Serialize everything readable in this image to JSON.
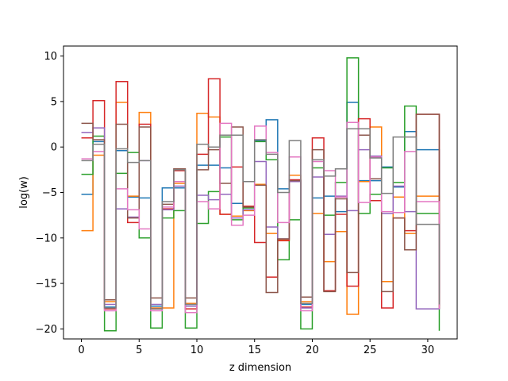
{
  "chart_data": {
    "type": "line",
    "style": "step-range",
    "xlabel": "z dimension",
    "ylabel": "log(w)",
    "xlim": [
      -1.55,
      32.55
    ],
    "ylim": [
      -21.1,
      11.1
    ],
    "xticks": [
      0,
      5,
      10,
      15,
      20,
      25,
      30
    ],
    "yticks": [
      10,
      5,
      0,
      -5,
      -10,
      -15,
      -20
    ],
    "grid": false,
    "legend": "none",
    "colors": [
      "#1f77b4",
      "#ff7f0e",
      "#2ca02c",
      "#d62728",
      "#9467bd",
      "#8c564b",
      "#e377c2",
      "#7f7f7f"
    ],
    "series": [
      {
        "values": [
          [
            0,
            -5.2
          ],
          [
            1,
            0.6
          ],
          [
            2,
            -17.6
          ],
          [
            3,
            -0.4
          ],
          [
            4,
            -5.5
          ],
          [
            5,
            -5.6
          ],
          [
            6,
            -17.5
          ],
          [
            7,
            -4.5
          ],
          [
            8,
            -4.5
          ],
          [
            9,
            -17.3
          ],
          [
            10,
            -2.0
          ],
          [
            11,
            -2.0
          ],
          [
            12,
            -2.3
          ],
          [
            13,
            -6.2
          ],
          [
            14,
            -6.6
          ],
          [
            15,
            0.7
          ],
          [
            16,
            3.0
          ],
          [
            17,
            -4.6
          ],
          [
            18,
            -3.7
          ],
          [
            19,
            -17.3
          ],
          [
            20,
            -5.6
          ],
          [
            21,
            -5.4
          ],
          [
            22,
            -7.1
          ],
          [
            23,
            4.9
          ],
          [
            24,
            -3.7
          ],
          [
            25,
            -3.7
          ],
          [
            26,
            -2.2
          ],
          [
            27,
            -4.4
          ],
          [
            28,
            1.7
          ],
          [
            29,
            -0.3
          ],
          [
            30,
            -0.3
          ],
          [
            31,
            -17.5
          ]
        ]
      },
      {
        "values": [
          [
            0,
            -9.2
          ],
          [
            1,
            -0.9
          ],
          [
            2,
            -17.0
          ],
          [
            3,
            4.9
          ],
          [
            4,
            -5.4
          ],
          [
            5,
            3.8
          ],
          [
            6,
            -17.7
          ],
          [
            7,
            -17.7
          ],
          [
            8,
            -4.0
          ],
          [
            9,
            -17.2
          ],
          [
            10,
            3.7
          ],
          [
            11,
            3.3
          ],
          [
            12,
            -7.4
          ],
          [
            13,
            -7.6
          ],
          [
            14,
            -7.0
          ],
          [
            15,
            -4.1
          ],
          [
            16,
            -9.5
          ],
          [
            17,
            -10.2
          ],
          [
            18,
            -3.1
          ],
          [
            19,
            -17.0
          ],
          [
            20,
            -7.3
          ],
          [
            21,
            -12.6
          ],
          [
            22,
            -9.3
          ],
          [
            23,
            -18.4
          ],
          [
            24,
            -3.8
          ],
          [
            25,
            2.2
          ],
          [
            26,
            -14.8
          ],
          [
            27,
            -5.5
          ],
          [
            28,
            -9.5
          ],
          [
            29,
            -5.4
          ],
          [
            30,
            -5.4
          ],
          [
            31,
            -17.0
          ]
        ]
      },
      {
        "values": [
          [
            0,
            -3.0
          ],
          [
            1,
            1.2
          ],
          [
            2,
            -20.2
          ],
          [
            3,
            -2.9
          ],
          [
            4,
            -0.6
          ],
          [
            5,
            -10.0
          ],
          [
            6,
            -19.9
          ],
          [
            7,
            -7.8
          ],
          [
            8,
            -7.0
          ],
          [
            9,
            -19.9
          ],
          [
            10,
            -8.4
          ],
          [
            11,
            -4.9
          ],
          [
            12,
            1.1
          ],
          [
            13,
            -8.0
          ],
          [
            14,
            -6.7
          ],
          [
            15,
            0.6
          ],
          [
            16,
            -1.4
          ],
          [
            17,
            -12.4
          ],
          [
            18,
            -8.0
          ],
          [
            19,
            -20.0
          ],
          [
            20,
            -2.3
          ],
          [
            21,
            -7.5
          ],
          [
            22,
            -3.9
          ],
          [
            23,
            9.8
          ],
          [
            24,
            -7.3
          ],
          [
            25,
            -5.2
          ],
          [
            26,
            -2.3
          ],
          [
            27,
            -3.9
          ],
          [
            28,
            4.5
          ],
          [
            29,
            -7.3
          ],
          [
            30,
            -7.3
          ],
          [
            31,
            -20.2
          ]
        ]
      },
      {
        "values": [
          [
            0,
            1.0
          ],
          [
            1,
            5.1
          ],
          [
            2,
            -17.8
          ],
          [
            3,
            7.2
          ],
          [
            4,
            -8.3
          ],
          [
            5,
            2.5
          ],
          [
            6,
            -17.8
          ],
          [
            7,
            -6.8
          ],
          [
            8,
            -2.6
          ],
          [
            9,
            -17.8
          ],
          [
            10,
            -0.8
          ],
          [
            11,
            7.5
          ],
          [
            12,
            -7.4
          ],
          [
            13,
            -2.2
          ],
          [
            14,
            -6.5
          ],
          [
            15,
            -10.5
          ],
          [
            16,
            -14.3
          ],
          [
            17,
            -10.3
          ],
          [
            18,
            -3.6
          ],
          [
            19,
            -17.6
          ],
          [
            20,
            1.0
          ],
          [
            21,
            -15.8
          ],
          [
            22,
            -7.4
          ],
          [
            23,
            -15.3
          ],
          [
            24,
            3.1
          ],
          [
            25,
            -5.9
          ],
          [
            26,
            -17.7
          ],
          [
            27,
            -7.8
          ],
          [
            28,
            -9.2
          ],
          [
            29,
            3.6
          ],
          [
            30,
            3.6
          ],
          [
            31,
            -17.8
          ]
        ]
      },
      {
        "values": [
          [
            0,
            1.6
          ],
          [
            1,
            2.1
          ],
          [
            2,
            -17.3
          ],
          [
            3,
            -6.8
          ],
          [
            4,
            -7.7
          ],
          [
            5,
            -1.5
          ],
          [
            6,
            -17.3
          ],
          [
            7,
            -6.9
          ],
          [
            8,
            -4.3
          ],
          [
            9,
            -17.5
          ],
          [
            10,
            -5.3
          ],
          [
            11,
            -5.8
          ],
          [
            12,
            -5.2
          ],
          [
            13,
            -7.8
          ],
          [
            14,
            -6.9
          ],
          [
            15,
            -1.6
          ],
          [
            16,
            -8.8
          ],
          [
            17,
            -10.1
          ],
          [
            18,
            -3.8
          ],
          [
            19,
            -17.7
          ],
          [
            20,
            -3.3
          ],
          [
            21,
            -9.6
          ],
          [
            22,
            -5.4
          ],
          [
            23,
            -7.0
          ],
          [
            24,
            -0.3
          ],
          [
            25,
            -1.0
          ],
          [
            26,
            -7.3
          ],
          [
            27,
            -4.3
          ],
          [
            28,
            -7.1
          ],
          [
            29,
            -17.8
          ],
          [
            30,
            -17.8
          ],
          [
            31,
            -17.6
          ]
        ]
      },
      {
        "values": [
          [
            0,
            2.6
          ],
          [
            1,
            0.8
          ],
          [
            2,
            -16.8
          ],
          [
            3,
            2.5
          ],
          [
            4,
            -7.8
          ],
          [
            5,
            2.2
          ],
          [
            6,
            -16.6
          ],
          [
            7,
            -6.3
          ],
          [
            8,
            -2.4
          ],
          [
            9,
            -16.6
          ],
          [
            10,
            -2.5
          ],
          [
            11,
            -0.3
          ],
          [
            12,
            -4.0
          ],
          [
            13,
            2.2
          ],
          [
            14,
            -6.6
          ],
          [
            15,
            -4.2
          ],
          [
            16,
            -16.0
          ],
          [
            17,
            -10.1
          ],
          [
            18,
            -3.7
          ],
          [
            19,
            -16.5
          ],
          [
            20,
            -0.3
          ],
          [
            21,
            -15.9
          ],
          [
            22,
            -5.7
          ],
          [
            23,
            -13.8
          ],
          [
            24,
            1.3
          ],
          [
            25,
            -3.5
          ],
          [
            26,
            -15.9
          ],
          [
            27,
            -7.8
          ],
          [
            28,
            -11.3
          ],
          [
            29,
            3.6
          ],
          [
            30,
            3.6
          ],
          [
            31,
            -16.1
          ]
        ]
      },
      {
        "values": [
          [
            0,
            -1.3
          ],
          [
            1,
            -0.5
          ],
          [
            2,
            -18.0
          ],
          [
            3,
            -4.6
          ],
          [
            4,
            -6.9
          ],
          [
            5,
            -9.0
          ],
          [
            6,
            -18.0
          ],
          [
            7,
            -6.6
          ],
          [
            8,
            -3.8
          ],
          [
            9,
            -18.2
          ],
          [
            10,
            -6.0
          ],
          [
            11,
            -6.8
          ],
          [
            12,
            2.6
          ],
          [
            13,
            -8.6
          ],
          [
            14,
            -7.5
          ],
          [
            15,
            2.3
          ],
          [
            16,
            -0.6
          ],
          [
            17,
            -8.3
          ],
          [
            18,
            -1.1
          ],
          [
            19,
            -18.0
          ],
          [
            20,
            -1.6
          ],
          [
            21,
            -2.6
          ],
          [
            22,
            -5.5
          ],
          [
            23,
            2.7
          ],
          [
            24,
            -6.1
          ],
          [
            25,
            -1.1
          ],
          [
            26,
            -7.1
          ],
          [
            27,
            -7.2
          ],
          [
            28,
            -0.5
          ],
          [
            29,
            -6.0
          ],
          [
            30,
            -6.0
          ],
          [
            31,
            -17.8
          ]
        ]
      },
      {
        "values": [
          [
            0,
            -1.5
          ],
          [
            1,
            0.3
          ],
          [
            2,
            -17.7
          ],
          [
            3,
            -0.2
          ],
          [
            4,
            -1.7
          ],
          [
            5,
            -1.5
          ],
          [
            6,
            -17.8
          ],
          [
            7,
            -6.0
          ],
          [
            8,
            -2.5
          ],
          [
            9,
            -17.3
          ],
          [
            10,
            0.3
          ],
          [
            11,
            0.0
          ],
          [
            12,
            1.3
          ],
          [
            13,
            1.3
          ],
          [
            14,
            -3.8
          ],
          [
            15,
            0.8
          ],
          [
            16,
            -0.8
          ],
          [
            17,
            -5.0
          ],
          [
            18,
            0.7
          ],
          [
            19,
            -17.2
          ],
          [
            20,
            -1.4
          ],
          [
            21,
            -3.2
          ],
          [
            22,
            -2.4
          ],
          [
            23,
            2.0
          ],
          [
            24,
            2.0
          ],
          [
            25,
            -1.2
          ],
          [
            26,
            -5.1
          ],
          [
            27,
            1.1
          ],
          [
            28,
            1.1
          ],
          [
            29,
            -8.5
          ],
          [
            30,
            -8.5
          ],
          [
            31,
            -17.3
          ]
        ]
      }
    ]
  }
}
